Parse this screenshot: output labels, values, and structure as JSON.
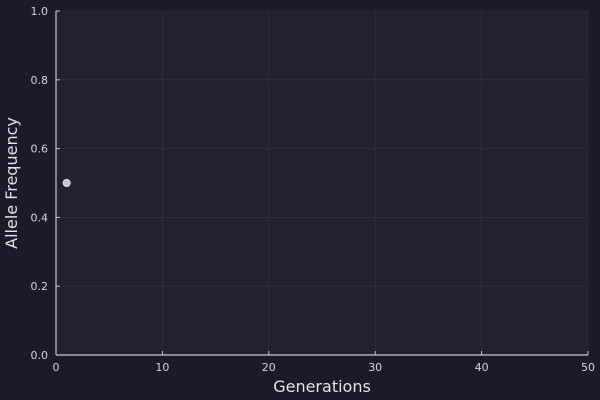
{
  "chart_data": {
    "type": "scatter",
    "title": "",
    "xlabel": "Generations",
    "ylabel": "Allele Frequency",
    "xlim": [
      0,
      50
    ],
    "ylim": [
      0.0,
      1.0
    ],
    "x_ticks": [
      0,
      10,
      20,
      30,
      40,
      50
    ],
    "x_tick_labels": [
      "0",
      "10",
      "20",
      "30",
      "40",
      "50"
    ],
    "y_ticks": [
      0.0,
      0.2,
      0.4,
      0.6,
      0.8,
      1.0
    ],
    "y_tick_labels": [
      "0.0",
      "0.2",
      "0.4",
      "0.6",
      "0.8",
      "1.0"
    ],
    "grid": true,
    "legend": false,
    "series": [
      {
        "x": [
          1
        ],
        "y": [
          0.5
        ],
        "color": "#c9c3d6"
      }
    ],
    "colors": {
      "background": "#1b1a28",
      "plot_background": "#23212f",
      "axis": "#c9c7d6",
      "grid": "#3a3850",
      "text": "#d6d4e2"
    }
  }
}
